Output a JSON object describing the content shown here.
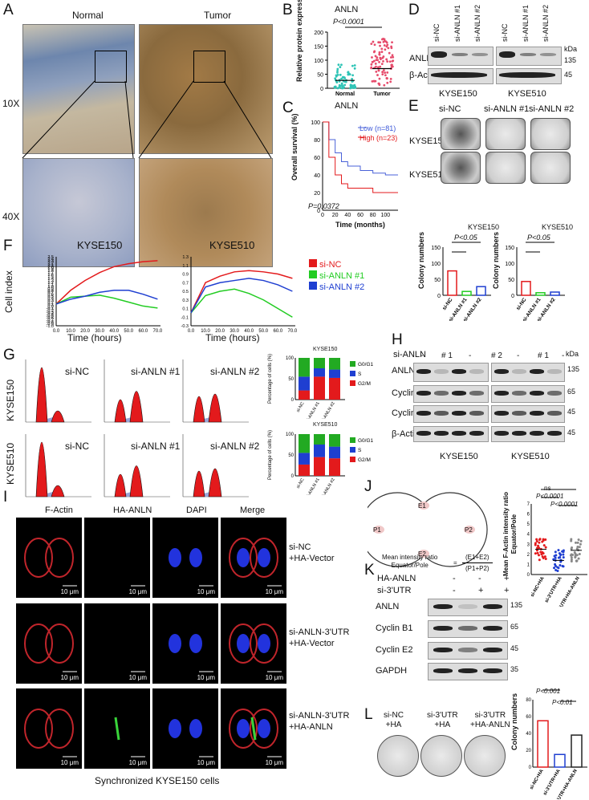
{
  "panels": {
    "A": "A",
    "B": "B",
    "C": "C",
    "D": "D",
    "E": "E",
    "F": "F",
    "G": "G",
    "H": "H",
    "I": "I",
    "J": "J",
    "K": "K",
    "L": "L"
  },
  "A": {
    "normal": "Normal",
    "tumor": "Tumor",
    "mag10": "10X",
    "mag40": "40X"
  },
  "B": {
    "title": "ANLN",
    "ylabel": "Relative protein expression",
    "pval": "P<0.0001",
    "xticks": [
      "Normal",
      "Tumor"
    ],
    "yticks": [
      "0",
      "50",
      "100",
      "150",
      "200"
    ]
  },
  "C": {
    "title": "ANLN",
    "ylabel": "Overall survival (%)",
    "xlabel": "Time (months)",
    "legend_low": "Low (n=81)",
    "legend_high": "High (n=23)",
    "pval": "P=0.0372",
    "yticks": [
      "0",
      "20",
      "40",
      "60",
      "80",
      "100"
    ],
    "xticks": [
      "0",
      "20",
      "40",
      "60",
      "80",
      "100"
    ]
  },
  "D": {
    "lanes": [
      "si-NC",
      "si-ANLN #1",
      "si-ANLN #2",
      "si-NC",
      "si-ANLN #1",
      "si-ANLN #2"
    ],
    "anln": "ANLN",
    "actin": "β-Actin",
    "kda": "kDa",
    "m135": "135",
    "m45": "45",
    "cell1": "KYSE150",
    "cell2": "KYSE510"
  },
  "E": {
    "cols": [
      "si-NC",
      "si-ANLN #1",
      "si-ANLN #2"
    ],
    "rows": [
      "KYSE150",
      "KYSE510"
    ],
    "chart1": "KYSE150",
    "chart2": "KYSE510",
    "ylabel": "Colony numbers",
    "p1": "P<0.05",
    "p2": "P<0.05",
    "xticks": [
      "si-NC",
      "si-ANLN #1",
      "si-ANLN #2"
    ],
    "yticks": [
      "0",
      "50",
      "100",
      "150"
    ]
  },
  "F": {
    "title1": "KYSE150",
    "title2": "KYSE510",
    "ylabel": "Cell index",
    "xlabel": "Time (hours)",
    "legend": [
      "si-NC",
      "si-ANLN #1",
      "si-ANLN #2"
    ],
    "yticks1": [
      "-1.0",
      "-0.9",
      "-0.8",
      "-0.7",
      "-0.6",
      "-0.5",
      "-0.4",
      "-0.3",
      "-0.2",
      "-0.1",
      "0.0",
      "0.1",
      "0.2",
      "0.3",
      "0.4",
      "0.5",
      "0.6",
      "0.7",
      "0.8",
      "0.9",
      "1.0",
      "1.1",
      "1.2",
      "1.3",
      "1.4",
      "1.5",
      "1.6",
      "1.7",
      "1.8",
      "1.9",
      "2.0",
      "2.1",
      "2.2",
      "2.3",
      "2.4",
      "2.5"
    ],
    "yticks2": [
      "-0.3",
      "-0.1",
      "0.1",
      "0.3",
      "0.5",
      "0.7",
      "0.9",
      "1.1",
      "1.3"
    ],
    "xticks": [
      "0.0",
      "10.0",
      "20.0",
      "30.0",
      "40.0",
      "50.0",
      "60.0",
      "70.0"
    ]
  },
  "G": {
    "labels": [
      "si-NC",
      "si-ANLN #1",
      "si-ANLN #2"
    ],
    "row1": "KYSE150",
    "row2": "KYSE510",
    "ylabel": "Percentage of cells (%)",
    "legend": [
      "G0/G1",
      "S",
      "G2/M"
    ],
    "title1": "KYSE150",
    "title2": "KYSE510",
    "xticks": [
      "si-NC",
      "si-ANLN #1",
      "si-ANLN #2"
    ]
  },
  "H": {
    "header": "si-ANLN",
    "lanes": [
      "-",
      "# 1",
      "-",
      "# 2",
      "-",
      "# 1",
      "-",
      "# 2"
    ],
    "rows": [
      "ANLN",
      "Cyclin B1",
      "Cyclin E2",
      "β-Actin"
    ],
    "kda": "kDa",
    "markers": [
      "135",
      "65",
      "45",
      "45"
    ],
    "cell1": "KYSE150",
    "cell2": "KYSE510"
  },
  "I": {
    "cols": [
      "F-Actin",
      "HA-ANLN",
      "DAPI",
      "Merge"
    ],
    "rows": [
      "si-NC\n+HA-Vector",
      "si-ANLN-3'UTR\n+HA-Vector",
      "si-ANLN-3'UTR\n+HA-ANLN"
    ],
    "scale": "10 μm",
    "caption": "Synchronized KYSE150 cells"
  },
  "J": {
    "e1": "E1",
    "e2": "E2",
    "p1": "P1",
    "p2": "P2",
    "eq_left": "Mean intensity ratio\nEquator/Pole",
    "eq_num": "(E1+E2)",
    "eq_den": "(P1+P2)",
    "ylabel": "Mean F-Actin intensity ratio\nEquator/Pole",
    "ns": "ns",
    "pa": "P<0.0001",
    "pb": "P<0.0001",
    "xticks": [
      "si-NC+HA",
      "si-3'UTR+HA",
      "si-3'UTR+HA-ANLN"
    ],
    "yticks": [
      "0",
      "1",
      "2",
      "3",
      "4",
      "5",
      "6",
      "7"
    ]
  },
  "K": {
    "r1": "HA-ANLN",
    "r2": "si-3'UTR",
    "signs1": [
      "-",
      "-",
      "+"
    ],
    "signs2": [
      "-",
      "+",
      "+"
    ],
    "rows": [
      "ANLN",
      "Cyclin B1",
      "Cyclin E2",
      "GAPDH"
    ],
    "markers": [
      "135",
      "65",
      "45",
      "35"
    ]
  },
  "L": {
    "dishes": [
      "si-NC\n+HA",
      "si-3'UTR\n+HA",
      "si-3'UTR\n+HA-ANLN"
    ],
    "ylabel": "Colony numbers",
    "pa": "P<0.001",
    "pb": "P<0.01",
    "xticks": [
      "si-NC+HA",
      "si-3'UTR+HA",
      "si-3'UTR+HA-ANLN"
    ],
    "yticks": [
      "0",
      "20",
      "40",
      "60",
      "80"
    ]
  },
  "chart_data": [
    {
      "type": "scatter",
      "title": "ANLN",
      "ylabel": "Relative protein expression",
      "categories": [
        "Normal",
        "Tumor"
      ],
      "ylim": [
        0,
        200
      ]
    },
    {
      "type": "line",
      "title": "ANLN",
      "xlabel": "Time (months)",
      "ylabel": "Overall survival (%)",
      "series": [
        {
          "name": "Low (n=81)",
          "x": [
            0,
            10,
            20,
            30,
            40,
            60,
            80,
            100,
            120
          ],
          "y": [
            100,
            80,
            65,
            55,
            50,
            45,
            42,
            40,
            40
          ]
        },
        {
          "name": "High (n=23)",
          "x": [
            0,
            10,
            20,
            30,
            40,
            60,
            80,
            100,
            120
          ],
          "y": [
            100,
            60,
            40,
            30,
            25,
            25,
            20,
            20,
            20
          ]
        }
      ],
      "ylim": [
        0,
        100
      ]
    },
    {
      "type": "bar",
      "title": "KYSE150",
      "ylabel": "Colony numbers",
      "categories": [
        "si-NC",
        "si-ANLN #1",
        "si-ANLN #2"
      ],
      "values": [
        76,
        12,
        27
      ],
      "ylim": [
        0,
        150
      ]
    },
    {
      "type": "bar",
      "title": "KYSE510",
      "ylabel": "Colony numbers",
      "categories": [
        "si-NC",
        "si-ANLN #1",
        "si-ANLN #2"
      ],
      "values": [
        43,
        8,
        10
      ],
      "ylim": [
        0,
        150
      ]
    },
    {
      "type": "line",
      "title": "KYSE150",
      "xlabel": "Time (hours)",
      "ylabel": "Cell index",
      "series": [
        {
          "name": "si-NC",
          "x": [
            0,
            10,
            20,
            30,
            40,
            50,
            60,
            70
          ],
          "y": [
            0.1,
            0.8,
            1.3,
            1.7,
            2.0,
            2.15,
            2.25,
            2.3
          ]
        },
        {
          "name": "si-ANLN #1",
          "x": [
            0,
            10,
            20,
            30,
            40,
            50,
            60,
            70
          ],
          "y": [
            0.1,
            0.45,
            0.5,
            0.55,
            0.4,
            0.2,
            0.0,
            -0.1
          ]
        },
        {
          "name": "si-ANLN #2",
          "x": [
            0,
            10,
            20,
            30,
            40,
            50,
            60,
            70
          ],
          "y": [
            0.1,
            0.35,
            0.5,
            0.7,
            0.8,
            0.8,
            0.6,
            0.35
          ]
        }
      ]
    },
    {
      "type": "line",
      "title": "KYSE510",
      "xlabel": "Time (hours)",
      "ylabel": "Cell index",
      "series": [
        {
          "name": "si-NC",
          "x": [
            0,
            10,
            20,
            30,
            40,
            50,
            60,
            70
          ],
          "y": [
            0.0,
            0.7,
            0.85,
            0.95,
            0.98,
            0.95,
            0.9,
            0.8
          ]
        },
        {
          "name": "si-ANLN #1",
          "x": [
            0,
            10,
            20,
            30,
            40,
            50,
            60,
            70
          ],
          "y": [
            0.0,
            0.4,
            0.5,
            0.55,
            0.45,
            0.3,
            0.1,
            -0.1
          ]
        },
        {
          "name": "si-ANLN #2",
          "x": [
            0,
            10,
            20,
            30,
            40,
            50,
            60,
            70
          ],
          "y": [
            0.0,
            0.6,
            0.7,
            0.75,
            0.8,
            0.75,
            0.65,
            0.5
          ]
        }
      ]
    },
    {
      "type": "bar",
      "title": "KYSE150",
      "ylabel": "Percentage of cells (%)",
      "categories": [
        "si-NC",
        "si-ANLN #1",
        "si-ANLN #2"
      ],
      "series": [
        {
          "name": "G0/G1",
          "values": [
            45,
            25,
            28
          ]
        },
        {
          "name": "S",
          "values": [
            33,
            20,
            20
          ]
        },
        {
          "name": "G2/M",
          "values": [
            22,
            55,
            52
          ]
        }
      ],
      "ylim": [
        0,
        100
      ]
    },
    {
      "type": "bar",
      "title": "KYSE510",
      "ylabel": "Percentage of cells (%)",
      "categories": [
        "si-NC",
        "si-ANLN #1",
        "si-ANLN #2"
      ],
      "series": [
        {
          "name": "G0/G1",
          "values": [
            45,
            25,
            30
          ]
        },
        {
          "name": "S",
          "values": [
            28,
            30,
            28
          ]
        },
        {
          "name": "G2/M",
          "values": [
            27,
            45,
            42
          ]
        }
      ],
      "ylim": [
        0,
        100
      ]
    },
    {
      "type": "scatter",
      "ylabel": "Mean F-Actin intensity ratio Equator/Pole",
      "categories": [
        "si-NC+HA",
        "si-3'UTR+HA",
        "si-3'UTR+HA-ANLN"
      ],
      "means": [
        2.5,
        1.4,
        2.4
      ],
      "ylim": [
        0,
        7
      ]
    },
    {
      "type": "bar",
      "ylabel": "Colony numbers",
      "categories": [
        "si-NC+HA",
        "si-3'UTR+HA",
        "si-3'UTR+HA-ANLN"
      ],
      "values": [
        55,
        15,
        38
      ],
      "ylim": [
        0,
        80
      ]
    }
  ],
  "colors": {
    "red": "#e31a1c",
    "green": "#22cc22",
    "blue": "#1f3fd1"
  }
}
